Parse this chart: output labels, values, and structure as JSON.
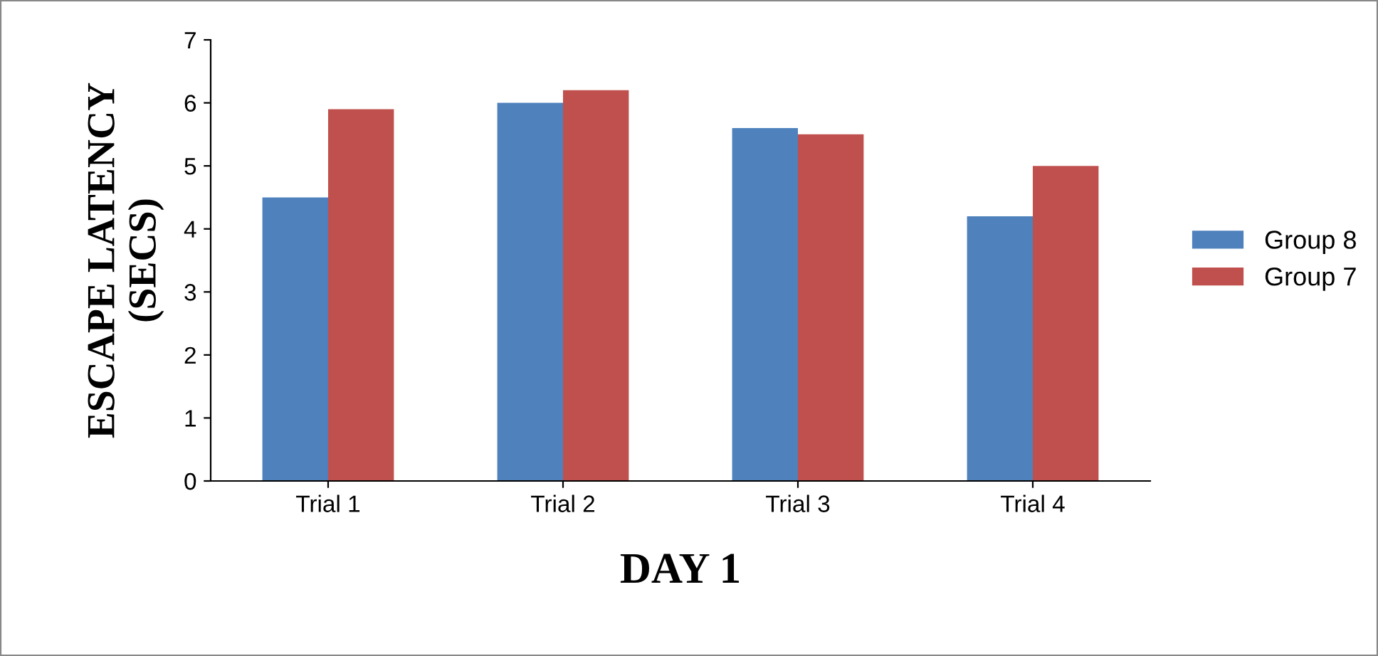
{
  "chart_data": {
    "type": "bar",
    "xlabel": "DAY 1",
    "ylabel": "ESCAPE LATENCY\n(SECS)",
    "categories": [
      "Trial 1",
      "Trial 2",
      "Trial 3",
      "Trial 4"
    ],
    "series": [
      {
        "name": "Group 8",
        "color": "#4f81bd",
        "values": [
          4.5,
          6.0,
          5.6,
          4.2
        ]
      },
      {
        "name": "Group 7",
        "color": "#c0504d",
        "values": [
          5.9,
          6.2,
          5.5,
          5.0
        ]
      }
    ],
    "ylim": [
      0,
      7
    ],
    "yticks": [
      0,
      1,
      2,
      3,
      4,
      5,
      6,
      7
    ],
    "grid": false,
    "legend": "right"
  }
}
